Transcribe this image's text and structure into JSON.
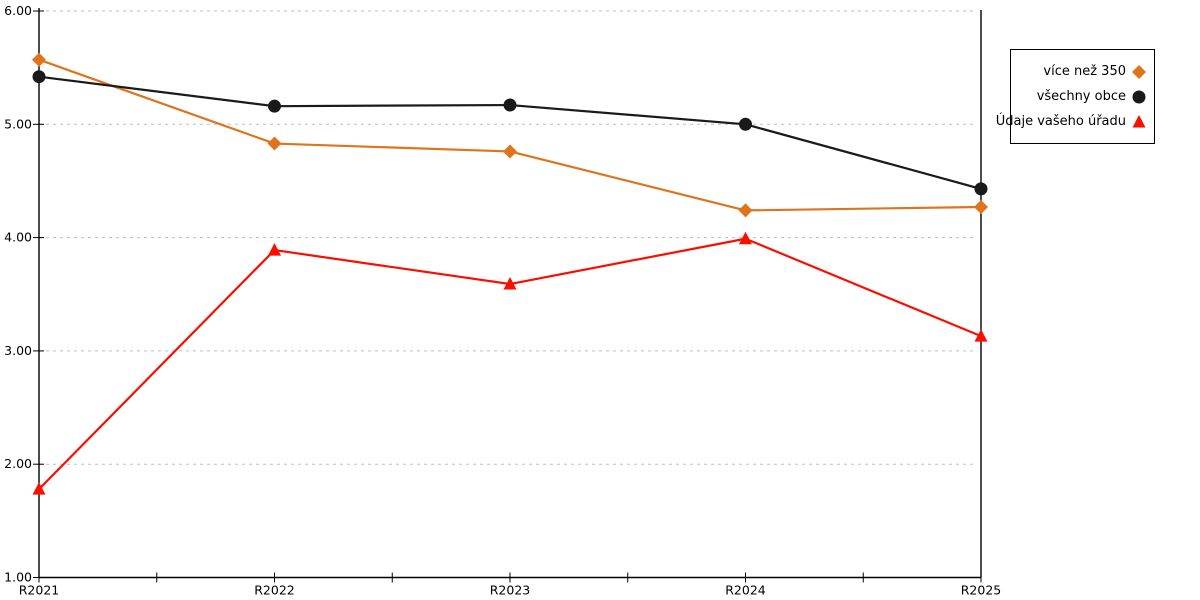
{
  "chart_data": {
    "type": "line",
    "title": "",
    "xlabel": "",
    "ylabel": "",
    "categories": [
      "R2021",
      "R2022",
      "R2023",
      "R2024",
      "R2025"
    ],
    "series": [
      {
        "name": "více než 350",
        "marker": "diamond",
        "color": "#DE741C",
        "values": [
          5.57,
          4.83,
          4.76,
          4.24,
          4.27
        ]
      },
      {
        "name": "všechny obce",
        "marker": "circle",
        "color": "#1a1a1a",
        "values": [
          5.42,
          5.16,
          5.17,
          5.0,
          4.43
        ]
      },
      {
        "name": "Údaje vašeho úřadu",
        "marker": "triangle",
        "color": "#FB0D00",
        "values": [
          1.78,
          3.89,
          3.59,
          3.99,
          3.13
        ]
      }
    ],
    "y_ticks": [
      "6.00",
      "5.00",
      "4.00",
      "3.00",
      "2.00",
      "1.00"
    ],
    "ylim": [
      1,
      6
    ],
    "grid": "horizontal-dashed",
    "grid_color": "#bfbfbf",
    "axis_color": "#000000",
    "legend_position": "right",
    "legend_order": [
      "více než 350",
      "všechny obce",
      "Údaje vašeho úřadu"
    ]
  }
}
